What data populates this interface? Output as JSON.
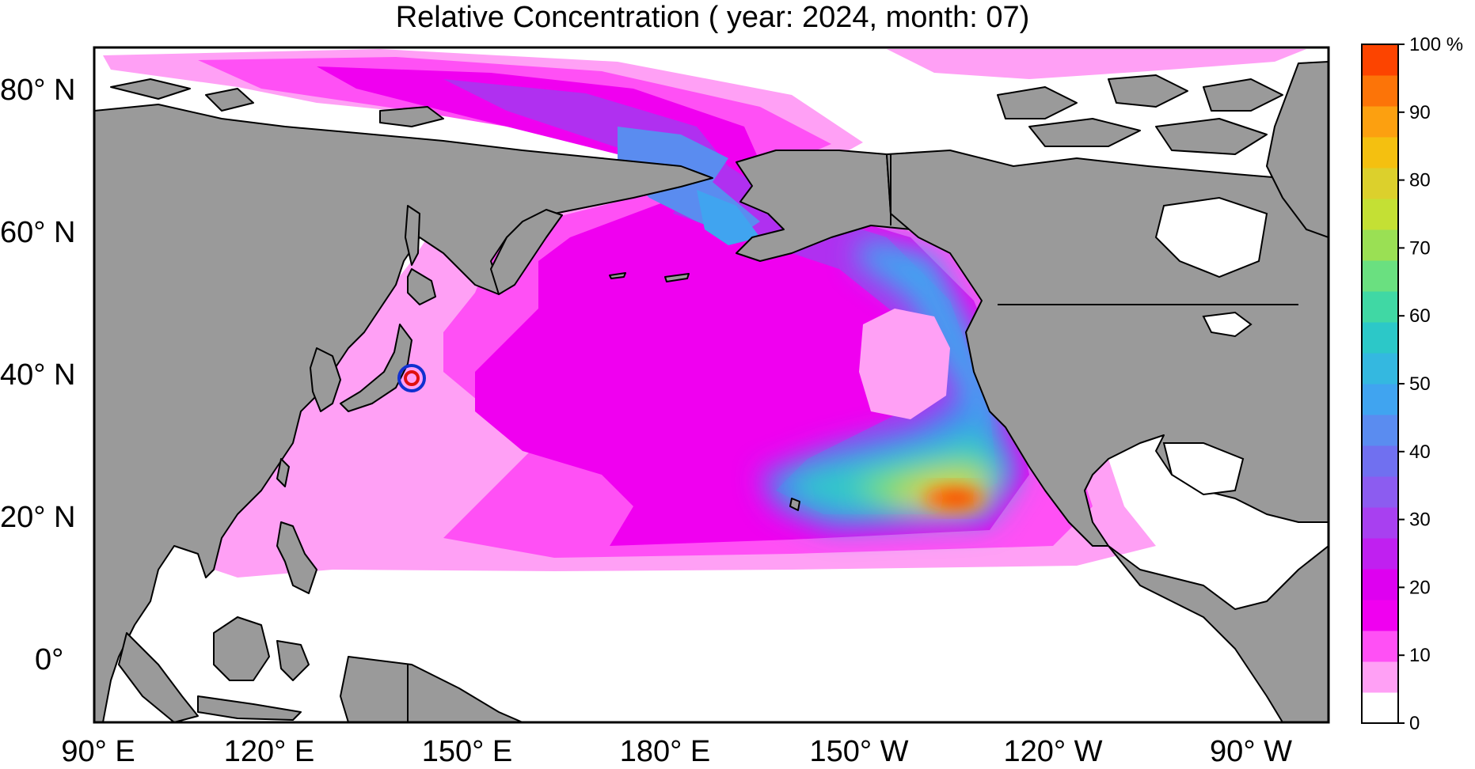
{
  "title": "Relative Concentration ( year: 2024, month: 07)",
  "map": {
    "latitude_labels": [
      "80° N",
      "60° N",
      "40° N",
      "20° N",
      "0°"
    ],
    "longitude_labels": [
      "90° E",
      "120° E",
      "150° E",
      "180° E",
      "150° W",
      "120° W",
      "90° W"
    ],
    "land_color": "#9a9a9a",
    "source_marker": {
      "name": "release-site-marker",
      "outer_color": "#1030d0",
      "inner_color": "#e01010"
    }
  },
  "colorbar": {
    "labels": [
      "0",
      "10",
      "20",
      "30",
      "40",
      "50",
      "60",
      "70",
      "80",
      "90",
      "100 %"
    ],
    "colors": [
      "#ffffff",
      "#ffa0f5",
      "#ff50f5",
      "#f000f0",
      "#de00f0",
      "#c020f0",
      "#a840f0",
      "#8c5cf0",
      "#7070f0",
      "#5a8cf0",
      "#40a4f0",
      "#34b8e0",
      "#2cc8c8",
      "#40d8a4",
      "#6ae080",
      "#9ae054",
      "#c4e034",
      "#dcd02c",
      "#f4c010",
      "#fca010",
      "#fc7408",
      "#fc4400"
    ]
  }
}
